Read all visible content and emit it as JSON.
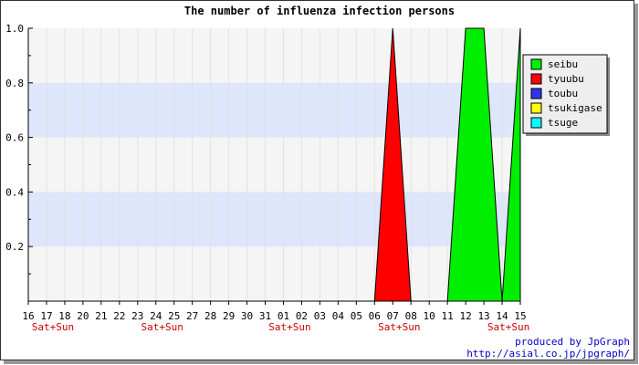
{
  "chart_data": {
    "type": "area",
    "title": "The number of influenza infection persons",
    "xlabel": "",
    "ylabel": "",
    "categories": [
      "16",
      "17",
      "18",
      "20",
      "21",
      "22",
      "23",
      "24",
      "25",
      "27",
      "28",
      "29",
      "30",
      "31",
      "01",
      "02",
      "03",
      "04",
      "05",
      "06",
      "07",
      "08",
      "10",
      "11",
      "12",
      "13",
      "14",
      "15"
    ],
    "weekend_labels": [
      {
        "category": "17",
        "text": "Sat+Sun"
      },
      {
        "category": "24",
        "text": "Sat+Sun"
      },
      {
        "category": "01",
        "text": "Sat+Sun"
      },
      {
        "category": "07",
        "text": "Sat+Sun"
      },
      {
        "category": "14",
        "text": "Sat+Sun"
      }
    ],
    "ylim": [
      0,
      1.0
    ],
    "yticks": [
      {
        "value": 0.2,
        "label": "0.2"
      },
      {
        "value": 0.4,
        "label": "0.4"
      },
      {
        "value": 0.6,
        "label": "0.6"
      },
      {
        "value": 0.8,
        "label": "0.8"
      },
      {
        "value": 1.0,
        "label": "1.0"
      }
    ],
    "grid": "alternating horizontal bands",
    "legend_position": "right",
    "series": [
      {
        "name": "seibu",
        "color": "#00ee00",
        "values": [
          0,
          0,
          0,
          0,
          0,
          0,
          0,
          0,
          0,
          0,
          0,
          0,
          0,
          0,
          0,
          0,
          0,
          0,
          0,
          0,
          0,
          0,
          0,
          0,
          1,
          1,
          0,
          1
        ]
      },
      {
        "name": "tyuubu",
        "color": "#ff0000",
        "values": [
          0,
          0,
          0,
          0,
          0,
          0,
          0,
          0,
          0,
          0,
          0,
          0,
          0,
          0,
          0,
          0,
          0,
          0,
          0,
          0,
          1,
          0,
          0,
          0,
          0,
          0,
          0,
          0
        ]
      },
      {
        "name": "toubu",
        "color": "#3333ee",
        "values": [
          0,
          0,
          0,
          0,
          0,
          0,
          0,
          0,
          0,
          0,
          0,
          0,
          0,
          0,
          0,
          0,
          0,
          0,
          0,
          0,
          0,
          0,
          0,
          0,
          0,
          0,
          0,
          0
        ]
      },
      {
        "name": "tsukigase",
        "color": "#ffff00",
        "values": [
          0,
          0,
          0,
          0,
          0,
          0,
          0,
          0,
          0,
          0,
          0,
          0,
          0,
          0,
          0,
          0,
          0,
          0,
          0,
          0,
          0,
          0,
          0,
          0,
          0,
          0,
          0,
          0
        ]
      },
      {
        "name": "tsuge",
        "color": "#00ffff",
        "values": [
          0,
          0,
          0,
          0,
          0,
          0,
          0,
          0,
          0,
          0,
          0,
          0,
          0,
          0,
          0,
          0,
          0,
          0,
          0,
          0,
          0,
          0,
          0,
          0,
          0,
          0,
          0,
          0
        ]
      }
    ]
  },
  "footer": {
    "line1": "produced by JpGraph",
    "line2": "http://asial.co.jp/jpgraph/"
  }
}
